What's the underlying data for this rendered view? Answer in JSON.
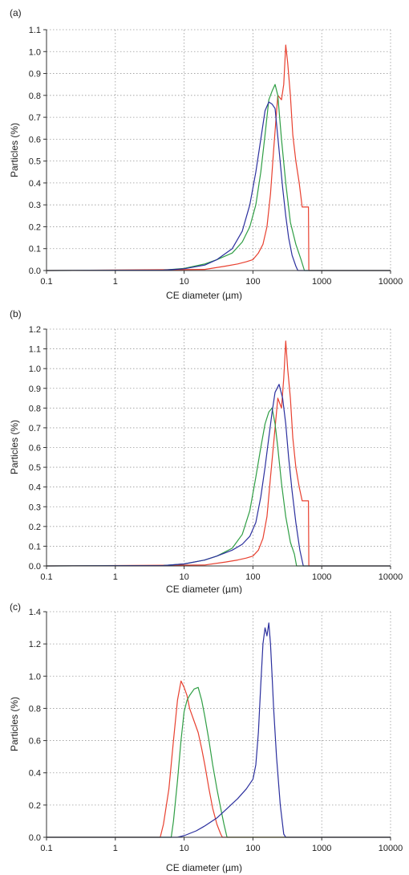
{
  "chart_data": [
    {
      "type": "line",
      "title": "(a)",
      "xlabel": "CE diameter (µm)",
      "ylabel": "Particles (%)",
      "xscale": "log",
      "xlim": [
        0.1,
        10000
      ],
      "ylim": [
        0,
        1.1
      ],
      "xticks": [
        "0.1",
        "1",
        "10",
        "100",
        "1000",
        "10000"
      ],
      "yticks": [
        "0.0",
        "0.1",
        "0.2",
        "0.3",
        "0.4",
        "0.5",
        "0.6",
        "0.7",
        "0.8",
        "0.9",
        "1.0",
        "1.1"
      ],
      "grid": true,
      "series": [
        {
          "color": "#e8402f",
          "x": [
            0.1,
            20,
            40,
            60,
            80,
            100,
            120,
            140,
            160,
            180,
            200,
            230,
            260,
            280,
            300,
            320,
            350,
            380,
            420,
            470,
            520,
            560,
            600,
            640,
            650,
            10000
          ],
          "y": [
            0,
            0.005,
            0.02,
            0.03,
            0.04,
            0.05,
            0.08,
            0.12,
            0.2,
            0.35,
            0.55,
            0.8,
            0.78,
            0.85,
            1.03,
            0.95,
            0.8,
            0.62,
            0.5,
            0.4,
            0.29,
            0.29,
            0.29,
            0.29,
            0,
            0
          ]
        },
        {
          "color": "#2f9e44",
          "x": [
            0.1,
            5,
            10,
            20,
            30,
            50,
            70,
            90,
            110,
            130,
            150,
            170,
            190,
            210,
            230,
            260,
            300,
            350,
            420,
            500,
            560,
            10000
          ],
          "y": [
            0,
            0.002,
            0.01,
            0.03,
            0.05,
            0.08,
            0.13,
            0.2,
            0.3,
            0.45,
            0.62,
            0.78,
            0.82,
            0.85,
            0.8,
            0.6,
            0.4,
            0.22,
            0.12,
            0.05,
            0,
            0
          ]
        },
        {
          "color": "#2b2f9e",
          "x": [
            0.1,
            5,
            10,
            20,
            30,
            50,
            70,
            90,
            110,
            130,
            150,
            170,
            190,
            210,
            240,
            270,
            300,
            330,
            370,
            420,
            450,
            10000
          ],
          "y": [
            0,
            0.002,
            0.008,
            0.025,
            0.05,
            0.1,
            0.18,
            0.3,
            0.45,
            0.6,
            0.73,
            0.77,
            0.76,
            0.74,
            0.55,
            0.38,
            0.25,
            0.15,
            0.07,
            0.02,
            0,
            0
          ]
        }
      ]
    },
    {
      "type": "line",
      "title": "(b)",
      "xlabel": "CE diameter (µm)",
      "ylabel": "Particles (%)",
      "xscale": "log",
      "xlim": [
        0.1,
        10000
      ],
      "ylim": [
        0,
        1.2
      ],
      "xticks": [
        "0.1",
        "1",
        "10",
        "100",
        "1000",
        "10000"
      ],
      "yticks": [
        "0.0",
        "0.1",
        "0.2",
        "0.3",
        "0.4",
        "0.5",
        "0.6",
        "0.7",
        "0.8",
        "0.9",
        "1.0",
        "1.1",
        "1.2"
      ],
      "grid": true,
      "series": [
        {
          "color": "#e8402f",
          "x": [
            0.1,
            20,
            40,
            60,
            80,
            100,
            120,
            140,
            160,
            180,
            200,
            230,
            260,
            280,
            300,
            320,
            350,
            380,
            420,
            470,
            520,
            600,
            640,
            650,
            10000
          ],
          "y": [
            0,
            0.005,
            0.02,
            0.03,
            0.04,
            0.05,
            0.08,
            0.14,
            0.25,
            0.45,
            0.62,
            0.85,
            0.8,
            0.95,
            1.14,
            1.0,
            0.85,
            0.65,
            0.5,
            0.4,
            0.33,
            0.33,
            0.33,
            0,
            0
          ]
        },
        {
          "color": "#2f9e44",
          "x": [
            0.1,
            5,
            10,
            20,
            30,
            50,
            70,
            90,
            110,
            130,
            150,
            170,
            190,
            210,
            230,
            260,
            300,
            350,
            400,
            430,
            10000
          ],
          "y": [
            0,
            0.002,
            0.01,
            0.03,
            0.05,
            0.09,
            0.16,
            0.28,
            0.45,
            0.6,
            0.72,
            0.78,
            0.8,
            0.72,
            0.6,
            0.42,
            0.25,
            0.12,
            0.06,
            0,
            0
          ]
        },
        {
          "color": "#2b2f9e",
          "x": [
            0.1,
            5,
            10,
            20,
            30,
            50,
            70,
            90,
            110,
            130,
            150,
            170,
            190,
            210,
            240,
            270,
            300,
            330,
            370,
            420,
            480,
            540,
            10000
          ],
          "y": [
            0,
            0.002,
            0.01,
            0.03,
            0.05,
            0.08,
            0.11,
            0.15,
            0.22,
            0.35,
            0.5,
            0.65,
            0.78,
            0.88,
            0.92,
            0.85,
            0.72,
            0.55,
            0.38,
            0.22,
            0.08,
            0,
            0
          ]
        }
      ]
    },
    {
      "type": "line",
      "title": "(c)",
      "xlabel": "CE diameter (µm)",
      "ylabel": "Particles (%)",
      "xscale": "log",
      "xlim": [
        0.1,
        10000
      ],
      "ylim": [
        0,
        1.4
      ],
      "xticks": [
        "0.1",
        "1",
        "10",
        "100",
        "1000",
        "10000"
      ],
      "yticks": [
        "0.0",
        "0.2",
        "0.4",
        "0.6",
        "0.8",
        "1.0",
        "1.2",
        "1.4"
      ],
      "grid": true,
      "series": [
        {
          "color": "#e8402f",
          "x": [
            0.1,
            4.5,
            5,
            6,
            7,
            8,
            9,
            10,
            11,
            12,
            14,
            16,
            18,
            20,
            23,
            26,
            30,
            34,
            36,
            10000
          ],
          "y": [
            0,
            0,
            0.08,
            0.3,
            0.6,
            0.85,
            0.97,
            0.93,
            0.88,
            0.8,
            0.72,
            0.65,
            0.55,
            0.45,
            0.3,
            0.18,
            0.08,
            0.02,
            0,
            0
          ]
        },
        {
          "color": "#2f9e44",
          "x": [
            0.1,
            6.5,
            7,
            8,
            9,
            10,
            11,
            12,
            14,
            16,
            18,
            20,
            23,
            26,
            30,
            34,
            38,
            42,
            10000
          ],
          "y": [
            0,
            0,
            0.1,
            0.35,
            0.6,
            0.78,
            0.85,
            0.88,
            0.92,
            0.93,
            0.85,
            0.75,
            0.6,
            0.45,
            0.3,
            0.18,
            0.08,
            0,
            0
          ]
        },
        {
          "color": "#2b2f9e",
          "x": [
            0.1,
            8,
            10,
            15,
            20,
            30,
            40,
            60,
            80,
            100,
            110,
            120,
            130,
            140,
            150,
            160,
            170,
            180,
            190,
            200,
            220,
            250,
            280,
            300,
            10000
          ],
          "y": [
            0,
            0,
            0.01,
            0.04,
            0.07,
            0.12,
            0.17,
            0.24,
            0.3,
            0.36,
            0.45,
            0.65,
            0.95,
            1.2,
            1.3,
            1.25,
            1.33,
            1.2,
            1.0,
            0.8,
            0.5,
            0.2,
            0.02,
            0,
            0
          ]
        }
      ]
    }
  ]
}
